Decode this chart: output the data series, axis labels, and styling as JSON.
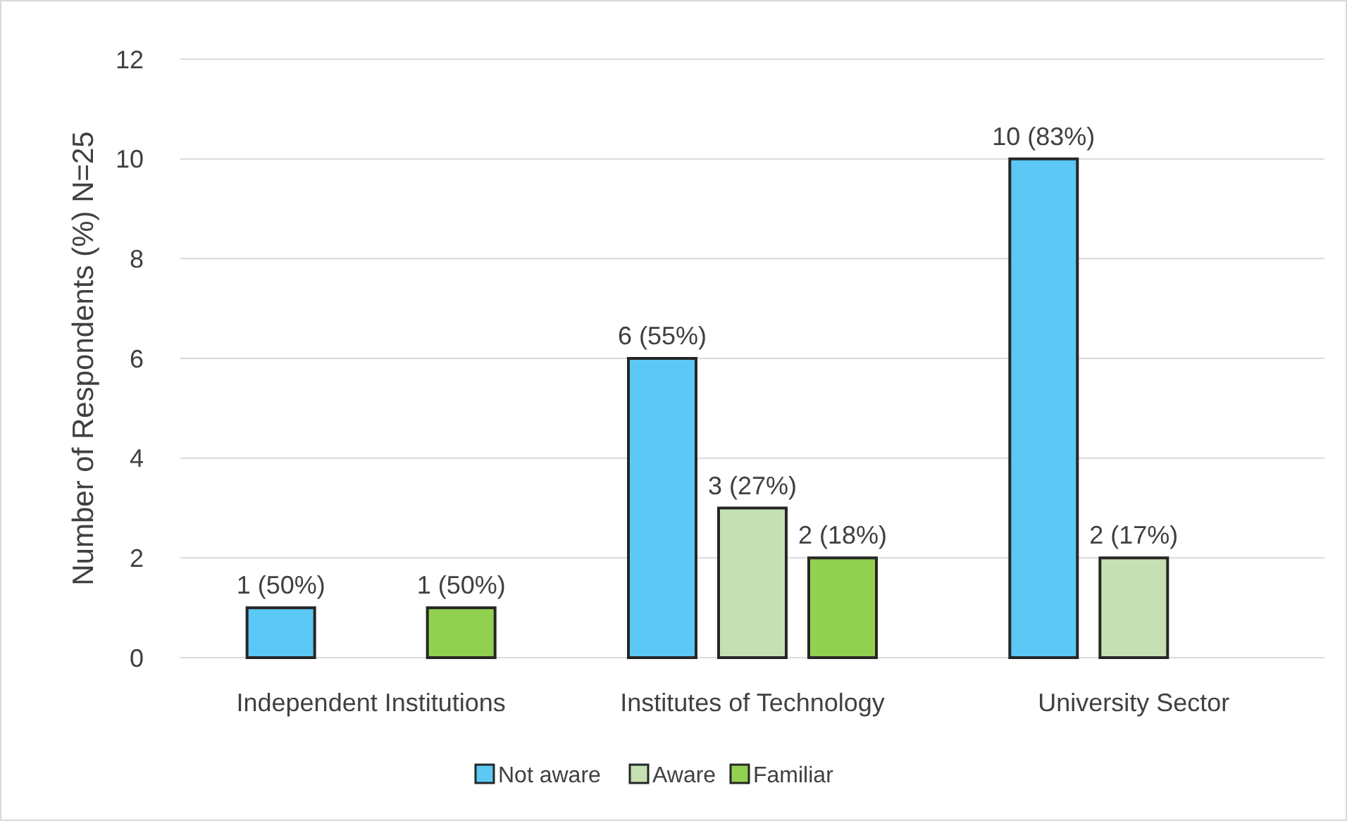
{
  "chart_data": {
    "type": "bar",
    "ylabel": "Number of Respondents (%) N=25",
    "categories": [
      "Independent Institutions",
      "Institutes of Technology",
      "University Sector"
    ],
    "series": [
      {
        "name": "Not aware",
        "color": "#5bc8f5",
        "values": [
          1,
          6,
          10
        ],
        "value_labels": [
          "1 (50%)",
          "6 (55%)",
          "10 (83%)"
        ]
      },
      {
        "name": "Aware",
        "color": "#c6e0b4",
        "values": [
          null,
          3,
          2
        ],
        "value_labels": [
          null,
          "3 (27%)",
          "2 (17%)"
        ]
      },
      {
        "name": "Familiar",
        "color": "#92d050",
        "values": [
          1,
          2,
          null
        ],
        "value_labels": [
          "1 (50%)",
          "2 (18%)",
          null
        ]
      }
    ],
    "ylim": [
      0,
      12
    ],
    "yticks": [
      0,
      2,
      4,
      6,
      8,
      10,
      12
    ],
    "grid": "y",
    "legend": "bottom"
  }
}
